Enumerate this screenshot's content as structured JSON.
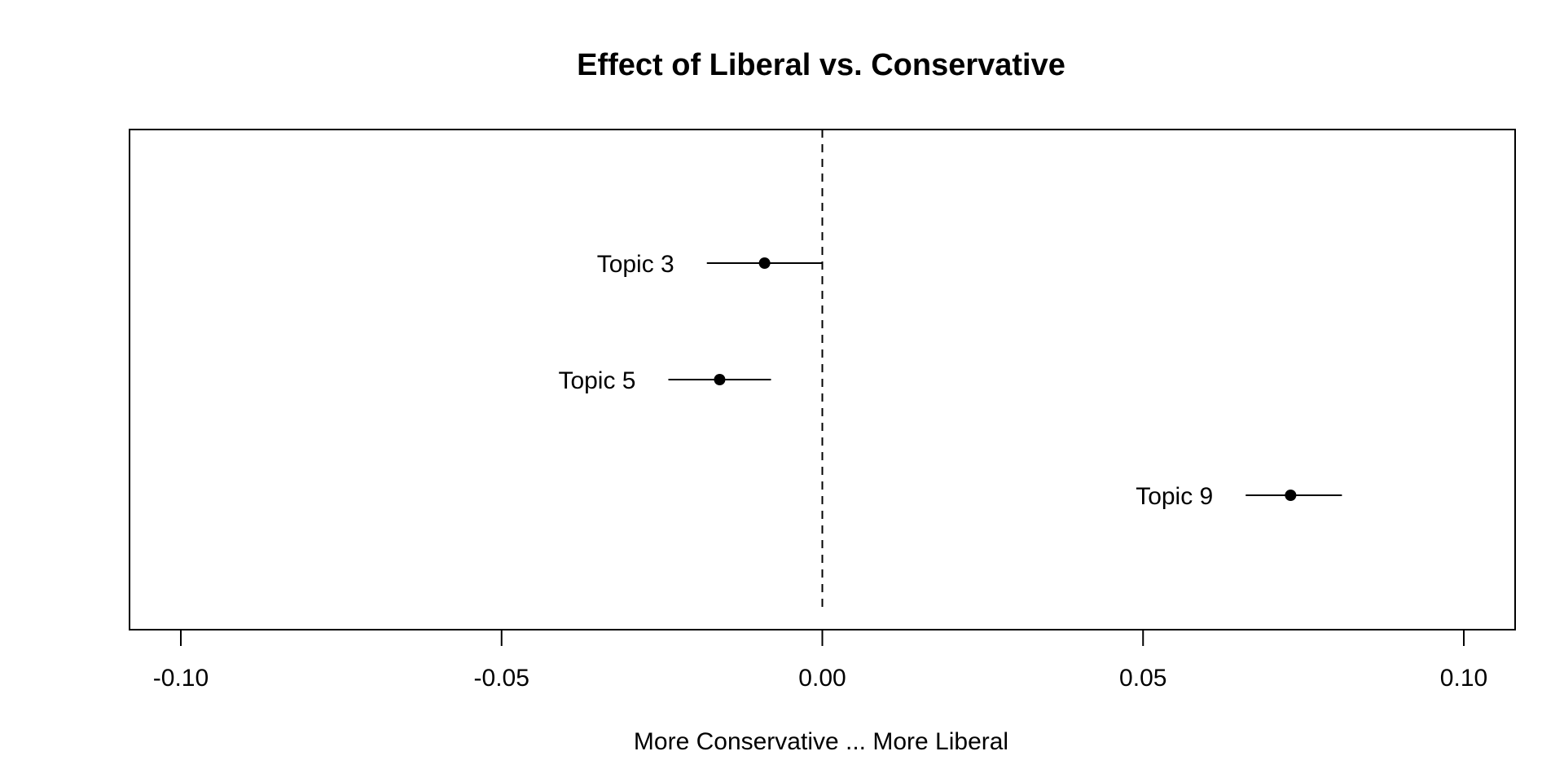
{
  "chart_data": {
    "type": "scatter",
    "title": "Effect of Liberal vs. Conservative",
    "xlabel": "More Conservative ... More Liberal",
    "ylabel": "",
    "xlim": [
      -0.108,
      0.108
    ],
    "xticks": [
      -0.1,
      -0.05,
      0.0,
      0.05,
      0.1
    ],
    "xtick_labels": [
      "-0.10",
      "-0.05",
      "0.00",
      "0.05",
      "0.10"
    ],
    "reference_line": {
      "x": 0.0,
      "style": "dashed"
    },
    "grid": false,
    "legend": "none",
    "points": [
      {
        "label": "Topic 3",
        "estimate": -0.009,
        "lower": -0.018,
        "upper": 0.0
      },
      {
        "label": "Topic 5",
        "estimate": -0.016,
        "lower": -0.024,
        "upper": -0.008
      },
      {
        "label": "Topic 9",
        "estimate": 0.073,
        "lower": 0.066,
        "upper": 0.081
      }
    ],
    "colors": {
      "marks": "#000000",
      "background": "#ffffff"
    }
  }
}
